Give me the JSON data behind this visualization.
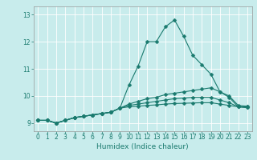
{
  "background_color": "#c8ecec",
  "grid_color": "#ffffff",
  "line_color": "#1a7a6e",
  "xlabel": "Humidex (Indice chaleur)",
  "xlim": [
    -0.5,
    23.5
  ],
  "ylim": [
    8.7,
    13.3
  ],
  "xticks": [
    0,
    1,
    2,
    3,
    4,
    5,
    6,
    7,
    8,
    9,
    10,
    11,
    12,
    13,
    14,
    15,
    16,
    17,
    18,
    19,
    20,
    21,
    22,
    23
  ],
  "yticks": [
    9,
    10,
    11,
    12,
    13
  ],
  "series": [
    [
      9.1,
      9.1,
      9.0,
      9.1,
      9.2,
      9.25,
      9.3,
      9.35,
      9.4,
      9.55,
      10.4,
      11.1,
      12.0,
      12.0,
      12.55,
      12.8,
      12.2,
      11.5,
      11.15,
      10.8,
      10.15,
      9.95,
      9.6,
      9.6
    ],
    [
      9.1,
      9.1,
      9.0,
      9.1,
      9.2,
      9.25,
      9.3,
      9.35,
      9.4,
      9.55,
      9.7,
      9.8,
      9.9,
      9.95,
      10.05,
      10.1,
      10.15,
      10.2,
      10.25,
      10.3,
      10.15,
      10.0,
      9.65,
      9.62
    ],
    [
      9.1,
      9.1,
      9.0,
      9.1,
      9.2,
      9.25,
      9.3,
      9.35,
      9.4,
      9.55,
      9.65,
      9.7,
      9.75,
      9.8,
      9.85,
      9.9,
      9.92,
      9.95,
      9.95,
      9.95,
      9.85,
      9.75,
      9.6,
      9.57
    ],
    [
      9.1,
      9.1,
      9.0,
      9.1,
      9.2,
      9.25,
      9.3,
      9.35,
      9.4,
      9.55,
      9.6,
      9.62,
      9.65,
      9.67,
      9.7,
      9.72,
      9.73,
      9.74,
      9.75,
      9.75,
      9.7,
      9.65,
      9.6,
      9.57
    ]
  ],
  "xlabel_fontsize": 6.5,
  "tick_fontsize": 5.5,
  "marker_size": 2.5,
  "line_width": 0.8
}
